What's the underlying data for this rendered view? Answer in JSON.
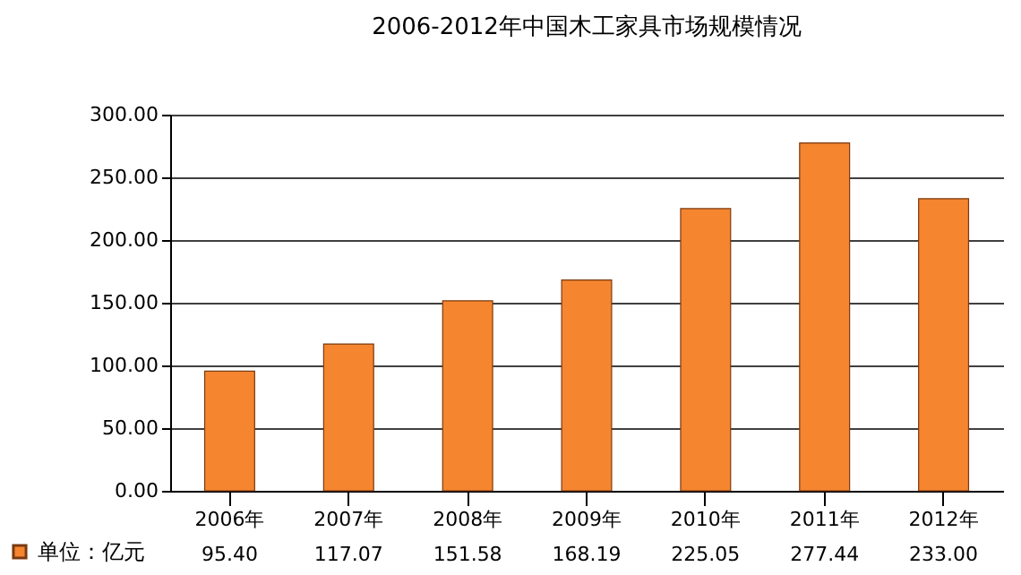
{
  "chart_data": {
    "type": "bar",
    "title": "2006-2012年中国木工家具市场规模情况",
    "categories": [
      "2006年",
      "2007年",
      "2008年",
      "2009年",
      "2010年",
      "2011年",
      "2012年"
    ],
    "series": [
      {
        "name": "单位：亿元",
        "color": "#f5852f",
        "values": [
          95.4,
          117.07,
          151.58,
          168.19,
          225.05,
          277.44,
          233.0
        ],
        "value_labels": [
          "95.40",
          "117.07",
          "151.58",
          "168.19",
          "225.05",
          "277.44",
          "233.00"
        ]
      }
    ],
    "ylim": [
      0,
      300
    ],
    "yticks": [
      {
        "value": 0,
        "label": "0.00"
      },
      {
        "value": 50,
        "label": "50.00"
      },
      {
        "value": 100,
        "label": "100.00"
      },
      {
        "value": 150,
        "label": "150.00"
      },
      {
        "value": 200,
        "label": "200.00"
      },
      {
        "value": 250,
        "label": "250.00"
      },
      {
        "value": 300,
        "label": "300.00"
      }
    ],
    "grid": "y",
    "legend": "bottom left"
  }
}
